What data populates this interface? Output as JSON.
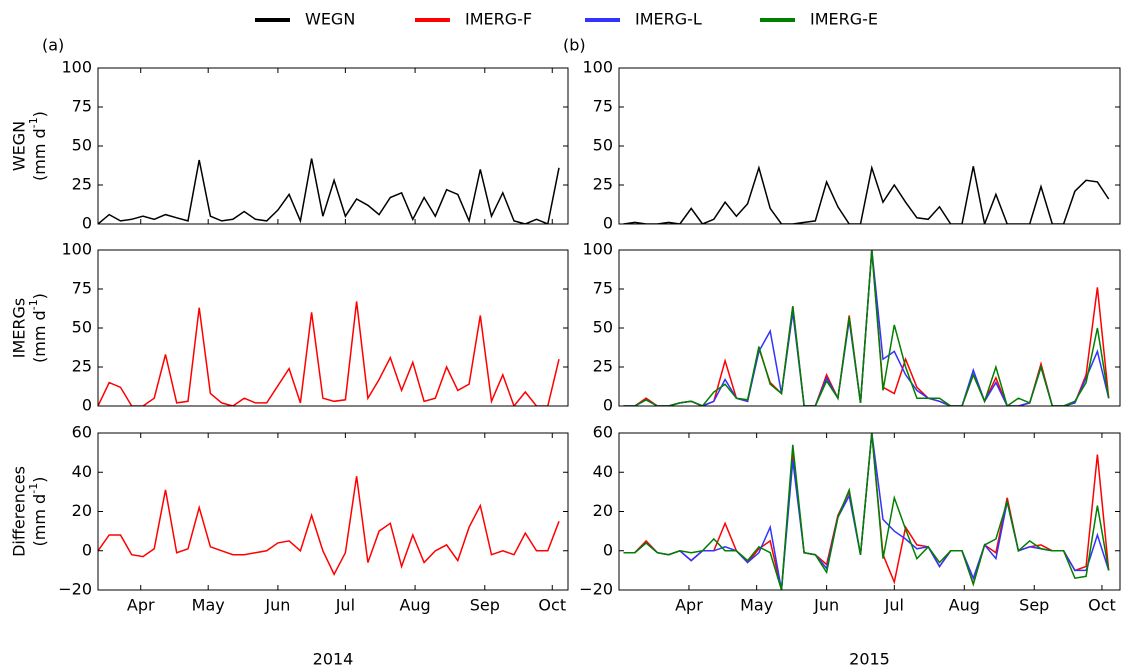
{
  "legend": [
    {
      "name": "WEGN",
      "color": "#000000"
    },
    {
      "name": "IMERG-F",
      "color": "#ff0000"
    },
    {
      "name": "IMERG-L",
      "color": "#3333ff"
    },
    {
      "name": "IMERG-E",
      "color": "#008000"
    }
  ],
  "chart_data": [
    {
      "type": "line",
      "panel_label": "(a)",
      "ylabel": [
        "WEGN",
        "(mm d",
        "-1",
        ")"
      ],
      "xlim": [
        86,
        295
      ],
      "ylim": [
        0,
        100
      ],
      "yticks": [
        0,
        25,
        50,
        75,
        100
      ],
      "xticks": [
        {
          "value": 105,
          "label": "Apr"
        },
        {
          "value": 135,
          "label": "May"
        },
        {
          "value": 166,
          "label": "Jun"
        },
        {
          "value": 196,
          "label": "Jul"
        },
        {
          "value": 227,
          "label": "Aug"
        },
        {
          "value": 258,
          "label": "Sep"
        },
        {
          "value": 288,
          "label": "Oct"
        }
      ],
      "x": [
        86,
        91,
        96,
        101,
        106,
        111,
        116,
        121,
        126,
        131,
        136,
        141,
        146,
        151,
        156,
        161,
        166,
        171,
        176,
        181,
        186,
        191,
        196,
        201,
        206,
        211,
        216,
        221,
        226,
        231,
        236,
        241,
        246,
        251,
        256,
        261,
        266,
        271,
        276,
        281,
        286,
        291
      ],
      "series": [
        {
          "color": "#000000",
          "values": [
            0,
            6,
            2,
            3,
            5,
            3,
            6,
            4,
            2,
            41,
            5,
            2,
            3,
            8,
            3,
            2,
            9,
            19,
            2,
            42,
            5,
            28,
            5,
            16,
            12,
            6,
            17,
            20,
            3,
            17,
            5,
            22,
            19,
            2,
            35,
            5,
            20,
            2,
            0,
            3,
            0,
            36
          ]
        }
      ]
    },
    {
      "type": "line",
      "ylabel": [
        "IMERGs",
        "(mm d",
        "-1",
        ")"
      ],
      "xlim": [
        86,
        295
      ],
      "ylim": [
        0,
        100
      ],
      "yticks": [
        0,
        25,
        50,
        75,
        100
      ],
      "x": [
        86,
        91,
        96,
        101,
        106,
        111,
        116,
        121,
        126,
        131,
        136,
        141,
        146,
        151,
        156,
        161,
        166,
        171,
        176,
        181,
        186,
        191,
        196,
        201,
        206,
        211,
        216,
        221,
        226,
        231,
        236,
        241,
        246,
        251,
        256,
        261,
        266,
        271,
        276,
        281,
        286,
        291
      ],
      "series": [
        {
          "color": "#ff0000",
          "values": [
            0,
            15,
            12,
            0,
            0,
            5,
            33,
            2,
            3,
            63,
            8,
            2,
            0,
            5,
            2,
            2,
            13,
            24,
            2,
            60,
            5,
            3,
            4,
            67,
            5,
            17,
            31,
            10,
            28,
            3,
            5,
            25,
            10,
            14,
            58,
            3,
            20,
            0,
            9,
            0,
            0,
            30
          ]
        }
      ]
    },
    {
      "type": "line",
      "ylabel": [
        "Differences",
        "(mm d",
        "-1",
        ")"
      ],
      "xlabel": "2014",
      "xlim": [
        86,
        295
      ],
      "ylim": [
        -20,
        60
      ],
      "yticks": [
        {
          "value": -20,
          "label": "−20"
        },
        0,
        20,
        40,
        60
      ],
      "xticks": [
        {
          "value": 105,
          "label": "Apr"
        },
        {
          "value": 135,
          "label": "May"
        },
        {
          "value": 166,
          "label": "Jun"
        },
        {
          "value": 196,
          "label": "Jul"
        },
        {
          "value": 227,
          "label": "Aug"
        },
        {
          "value": 258,
          "label": "Sep"
        },
        {
          "value": 288,
          "label": "Oct"
        }
      ],
      "x": [
        86,
        91,
        96,
        101,
        106,
        111,
        116,
        121,
        126,
        131,
        136,
        141,
        146,
        151,
        156,
        161,
        166,
        171,
        176,
        181,
        186,
        191,
        196,
        201,
        206,
        211,
        216,
        221,
        226,
        231,
        236,
        241,
        246,
        251,
        256,
        261,
        266,
        271,
        276,
        281,
        286,
        291
      ],
      "series": [
        {
          "color": "#ff0000",
          "values": [
            0,
            8,
            8,
            -2,
            -3,
            1,
            31,
            -1,
            1,
            22,
            2,
            0,
            -2,
            -2,
            -1,
            0,
            4,
            5,
            0,
            18,
            0,
            -12,
            -1,
            38,
            -6,
            10,
            14,
            -8,
            8,
            -6,
            0,
            3,
            -5,
            12,
            23,
            -2,
            0,
            -2,
            9,
            0,
            0,
            15
          ]
        }
      ]
    },
    {
      "type": "line",
      "panel_label": "(b)",
      "xlim": [
        74,
        296
      ],
      "ylim": [
        0,
        100
      ],
      "yticks": [
        0,
        25,
        50,
        75,
        100
      ],
      "x": [
        76,
        81,
        86,
        91,
        96,
        101,
        106,
        111,
        116,
        121,
        126,
        131,
        136,
        141,
        146,
        151,
        156,
        161,
        166,
        171,
        176,
        181,
        186,
        191,
        196,
        201,
        206,
        211,
        216,
        221,
        226,
        231,
        236,
        241,
        246,
        251,
        256,
        261,
        266,
        271,
        276,
        281,
        286,
        291
      ],
      "series": [
        {
          "color": "#000000",
          "values": [
            0,
            1,
            0,
            0,
            1,
            0,
            10,
            0,
            3,
            14,
            5,
            13,
            36,
            10,
            0,
            0,
            1,
            2,
            27,
            11,
            0,
            0,
            36,
            14,
            25,
            14,
            4,
            3,
            11,
            0,
            0,
            37,
            0,
            19,
            0,
            0,
            0,
            24,
            0,
            0,
            21,
            28,
            27,
            16
          ]
        }
      ]
    },
    {
      "type": "line",
      "xlim": [
        74,
        296
      ],
      "ylim": [
        0,
        100
      ],
      "yticks": [
        0,
        25,
        50,
        75,
        100
      ],
      "x": [
        76,
        81,
        86,
        91,
        96,
        101,
        106,
        111,
        116,
        121,
        126,
        131,
        136,
        141,
        146,
        151,
        156,
        161,
        166,
        171,
        176,
        181,
        186,
        191,
        196,
        201,
        206,
        211,
        216,
        221,
        226,
        231,
        236,
        241,
        246,
        251,
        256,
        261,
        266,
        271,
        276,
        281,
        286,
        291
      ],
      "series": [
        {
          "color": "#ff0000",
          "values": [
            0,
            0,
            5,
            0,
            0,
            2,
            3,
            0,
            3,
            29,
            5,
            3,
            37,
            15,
            8,
            64,
            0,
            0,
            20,
            5,
            58,
            2,
            100,
            12,
            8,
            30,
            12,
            5,
            3,
            0,
            0,
            20,
            3,
            18,
            0,
            0,
            2,
            27,
            0,
            0,
            2,
            20,
            76,
            5
          ]
        },
        {
          "color": "#3333ff",
          "values": [
            0,
            0,
            4,
            0,
            0,
            2,
            3,
            0,
            3,
            17,
            5,
            3,
            35,
            48,
            8,
            60,
            0,
            0,
            18,
            5,
            55,
            2,
            100,
            30,
            35,
            20,
            10,
            5,
            3,
            0,
            0,
            23,
            3,
            15,
            0,
            0,
            2,
            25,
            0,
            0,
            2,
            18,
            35,
            5
          ]
        },
        {
          "color": "#008000",
          "values": [
            0,
            0,
            4,
            0,
            0,
            2,
            3,
            0,
            9,
            14,
            5,
            4,
            38,
            14,
            8,
            64,
            0,
            0,
            16,
            5,
            57,
            2,
            100,
            10,
            52,
            25,
            5,
            5,
            5,
            0,
            0,
            20,
            3,
            25,
            0,
            5,
            2,
            25,
            0,
            0,
            3,
            15,
            50,
            5
          ]
        }
      ]
    },
    {
      "type": "line",
      "xlabel": "2015",
      "xlim": [
        74,
        296
      ],
      "ylim": [
        -20,
        60
      ],
      "yticks": [
        {
          "value": -20,
          "label": "−20"
        },
        0,
        20,
        40,
        60
      ],
      "xticks": [
        {
          "value": 105,
          "label": "Apr"
        },
        {
          "value": 135,
          "label": "May"
        },
        {
          "value": 166,
          "label": "Jun"
        },
        {
          "value": 196,
          "label": "Jul"
        },
        {
          "value": 227,
          "label": "Aug"
        },
        {
          "value": 258,
          "label": "Sep"
        },
        {
          "value": 288,
          "label": "Oct"
        }
      ],
      "x": [
        76,
        81,
        86,
        91,
        96,
        101,
        106,
        111,
        116,
        121,
        126,
        131,
        136,
        141,
        146,
        151,
        156,
        161,
        166,
        171,
        176,
        181,
        186,
        191,
        196,
        201,
        206,
        211,
        216,
        221,
        226,
        231,
        236,
        241,
        246,
        251,
        256,
        261,
        266,
        271,
        276,
        281,
        286,
        291
      ],
      "series": [
        {
          "color": "#ff0000",
          "values": [
            -1,
            -1,
            5,
            -1,
            -2,
            0,
            -5,
            0,
            0,
            14,
            0,
            -6,
            1,
            5,
            -20,
            50,
            -1,
            -2,
            -7,
            18,
            30,
            -2,
            60,
            -2,
            -16,
            12,
            3,
            2,
            -8,
            0,
            0,
            -17,
            3,
            -1,
            27,
            0,
            2,
            3,
            0,
            0,
            -10,
            -8,
            49,
            -10
          ]
        },
        {
          "color": "#3333ff",
          "values": [
            -1,
            -1,
            4,
            -1,
            -2,
            0,
            -5,
            0,
            0,
            2,
            0,
            -6,
            -1,
            12,
            -20,
            46,
            -1,
            -2,
            -9,
            17,
            28,
            -2,
            60,
            16,
            10,
            6,
            1,
            2,
            -8,
            0,
            0,
            -14,
            3,
            -4,
            25,
            0,
            2,
            1,
            0,
            0,
            -10,
            -10,
            8,
            -10
          ]
        },
        {
          "color": "#008000",
          "values": [
            -1,
            -1,
            4,
            -1,
            -2,
            0,
            -1,
            0,
            6,
            0,
            0,
            -5,
            2,
            -1,
            -20,
            54,
            -1,
            -2,
            -11,
            17,
            31,
            -2,
            60,
            -4,
            27,
            11,
            -4,
            2,
            -6,
            0,
            0,
            -17,
            3,
            6,
            25,
            0,
            5,
            1,
            0,
            0,
            -14,
            -13,
            23,
            -10
          ]
        }
      ]
    }
  ]
}
